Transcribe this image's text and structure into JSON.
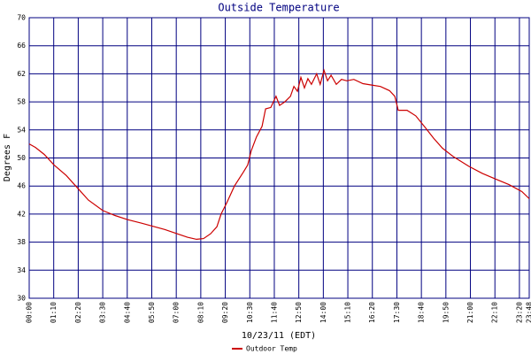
{
  "chart_data": {
    "type": "line",
    "title": "Outside Temperature",
    "x_label": "10/23/11 (EDT)",
    "y_label": "Degrees F",
    "xlim": [
      0,
      1428
    ],
    "xticks": [
      {
        "value": 0,
        "label": "00:00"
      },
      {
        "value": 70,
        "label": "01:10"
      },
      {
        "value": 140,
        "label": "02:20"
      },
      {
        "value": 210,
        "label": "03:30"
      },
      {
        "value": 280,
        "label": "04:40"
      },
      {
        "value": 350,
        "label": "05:50"
      },
      {
        "value": 420,
        "label": "07:00"
      },
      {
        "value": 490,
        "label": "08:10"
      },
      {
        "value": 560,
        "label": "09:20"
      },
      {
        "value": 630,
        "label": "10:30"
      },
      {
        "value": 700,
        "label": "11:40"
      },
      {
        "value": 770,
        "label": "12:50"
      },
      {
        "value": 840,
        "label": "14:00"
      },
      {
        "value": 910,
        "label": "15:10"
      },
      {
        "value": 980,
        "label": "16:20"
      },
      {
        "value": 1050,
        "label": "17:30"
      },
      {
        "value": 1120,
        "label": "18:40"
      },
      {
        "value": 1190,
        "label": "19:50"
      },
      {
        "value": 1260,
        "label": "21:00"
      },
      {
        "value": 1330,
        "label": "22:10"
      },
      {
        "value": 1400,
        "label": "23:20"
      },
      {
        "value": 1428,
        "label": "23:48"
      }
    ],
    "ylim": [
      30,
      70
    ],
    "yticks": [
      30,
      34,
      38,
      42,
      46,
      50,
      54,
      58,
      62,
      66,
      70
    ],
    "grid": true,
    "grid_color": "#000080",
    "x": [
      0,
      18,
      43,
      71,
      106,
      142,
      169,
      210,
      245,
      281,
      321,
      351,
      387,
      422,
      452,
      478,
      498,
      518,
      536,
      548,
      564,
      586,
      612,
      624,
      634,
      649,
      665,
      675,
      690,
      705,
      715,
      730,
      746,
      756,
      766,
      776,
      786,
      796,
      806,
      821,
      831,
      842,
      852,
      862,
      877,
      892,
      907,
      927,
      953,
      978,
      1003,
      1029,
      1044,
      1054,
      1079,
      1104,
      1130,
      1155,
      1180,
      1211,
      1256,
      1294,
      1332,
      1370,
      1407,
      1428
    ],
    "series": [
      {
        "name": "Outdoor Temp",
        "color": "#cc0000",
        "values": [
          52,
          51.5,
          50.5,
          49,
          47.5,
          45.5,
          44,
          42.5,
          41.8,
          41.2,
          40.7,
          40.3,
          39.8,
          39.2,
          38.7,
          38.4,
          38.5,
          39.2,
          40.2,
          42,
          43.6,
          46,
          48,
          49,
          51,
          53,
          54.5,
          57,
          57.2,
          58.8,
          57.5,
          58,
          58.8,
          60.2,
          59.5,
          61.5,
          60,
          61.3,
          60.5,
          62,
          60.5,
          62.5,
          61,
          61.8,
          60.5,
          61.2,
          61,
          61.2,
          60.6,
          60.4,
          60.2,
          59.6,
          58.8,
          56.8,
          56.8,
          56,
          54.4,
          52.8,
          51.4,
          50.2,
          48.8,
          47.8,
          47,
          46.2,
          45.2,
          44.2
        ]
      }
    ]
  }
}
